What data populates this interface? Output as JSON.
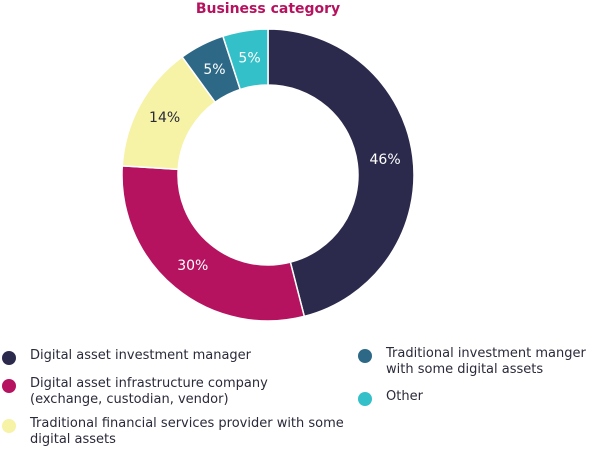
{
  "chart_data": {
    "type": "pie",
    "title": "Business category",
    "series": [
      {
        "values": [
          46,
          30,
          14,
          5,
          5
        ],
        "labels": [
          "46%",
          "30%",
          "14%",
          "5%",
          "5%"
        ]
      }
    ],
    "categories": [
      "Digital asset investment manager",
      "Digital asset infrastructure company\n(exchange, custodian, vendor)",
      "Traditional financial services provider with some\ndigital assets",
      "Traditional investment manger\nwith some digital assets",
      "Other"
    ],
    "colors": [
      "#2b2a4c",
      "#b5135f",
      "#f6f2a6",
      "#2d6987",
      "#34c0c8"
    ],
    "label_colors": [
      "#ffffff",
      "#ffffff",
      "#2a2a3a",
      "#ffffff",
      "#ffffff"
    ],
    "title_color": "#b5135f",
    "legend_position": "bottom",
    "donut": true
  }
}
